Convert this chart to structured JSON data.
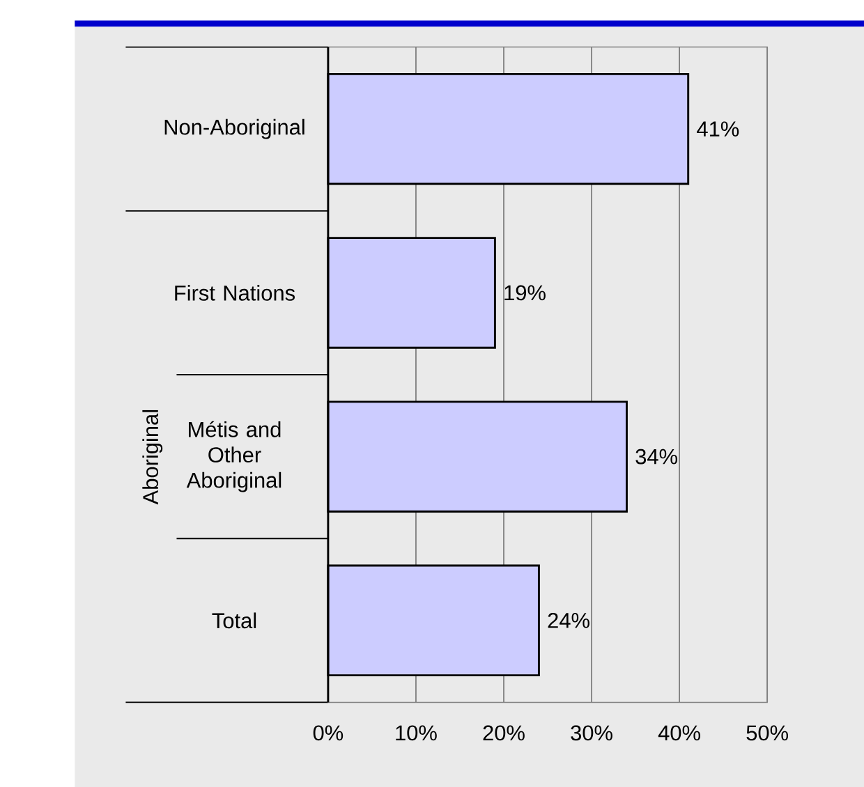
{
  "chart_data": {
    "type": "bar",
    "orientation": "horizontal",
    "categories": [
      "Non-Aboriginal",
      "First Nations",
      "Métis and Other Aboriginal",
      "Total"
    ],
    "values": [
      41,
      19,
      34,
      24
    ],
    "value_labels": [
      "41%",
      "19%",
      "34%",
      "24%"
    ],
    "color": "#ccccff",
    "xlim": [
      0,
      50
    ],
    "xticks": [
      {
        "value": 0,
        "label": "0%"
      },
      {
        "value": 10,
        "label": "10%"
      },
      {
        "value": 20,
        "label": "20%"
      },
      {
        "value": 30,
        "label": "30%"
      },
      {
        "value": 40,
        "label": "40%"
      },
      {
        "value": 50,
        "label": "50%"
      }
    ],
    "grid": "x",
    "annotations": [
      "Aboriginal"
    ]
  }
}
